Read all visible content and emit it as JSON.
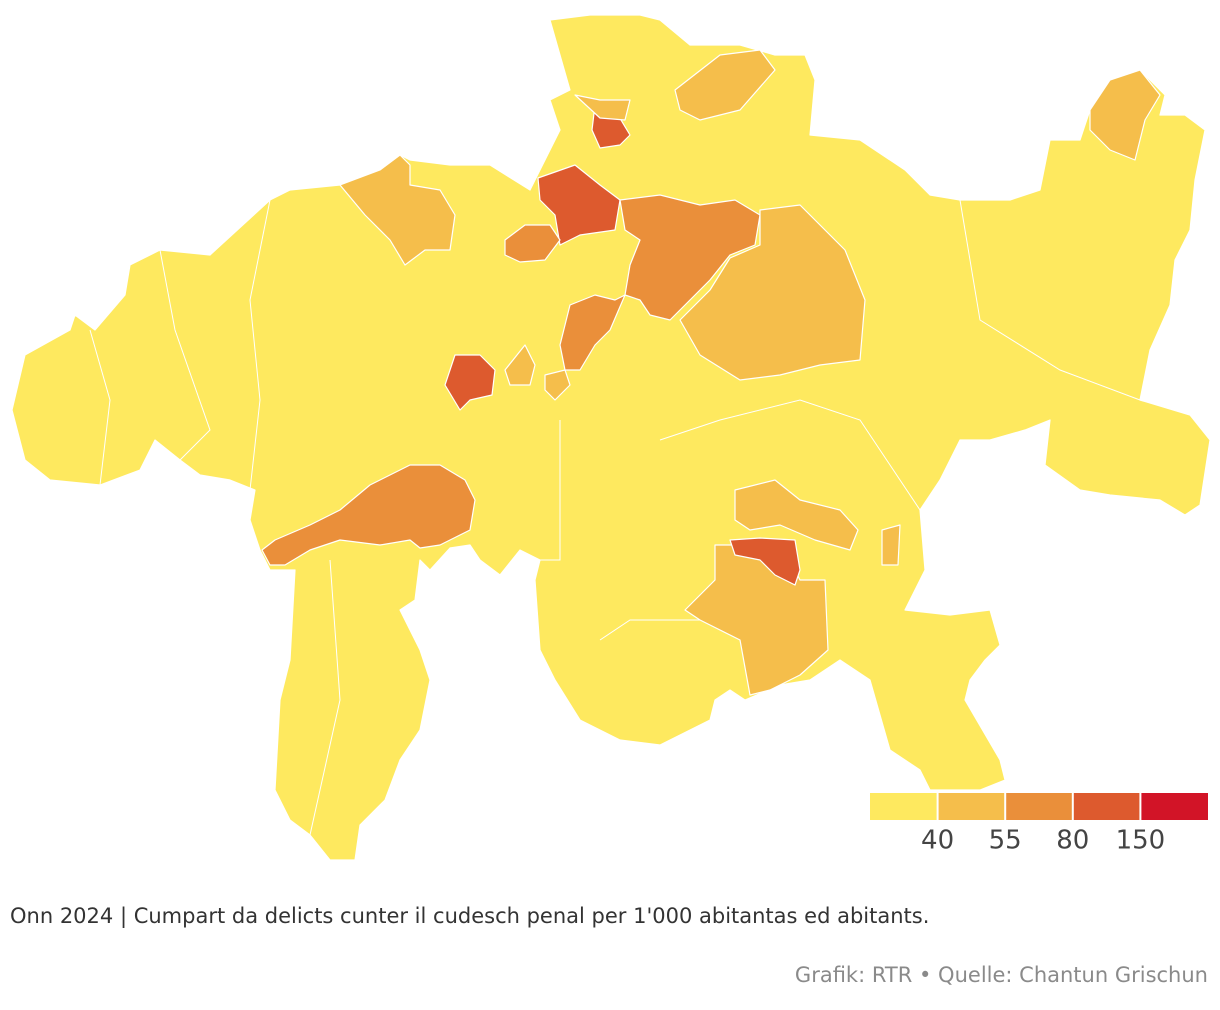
{
  "map": {
    "legend": {
      "colors": [
        "#fee95f",
        "#f5be4b",
        "#ea8f3a",
        "#dd5a2e",
        "#d21427"
      ],
      "breaks": [
        40,
        55,
        80,
        150
      ]
    }
  },
  "caption": "Onn 2024 | Cumpart da delicts cunter il cudesch penal per 1'000 abitantas ed abitants.",
  "source": "Grafik: RTR • Quelle: Chantun Grischun"
}
